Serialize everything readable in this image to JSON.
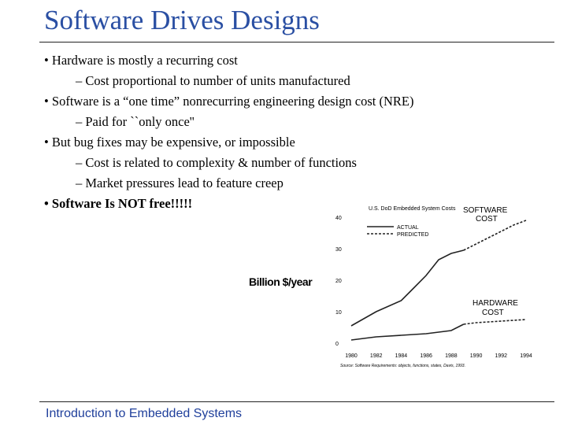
{
  "slide": {
    "title": "Software Drives Designs",
    "footer": "Introduction to Embedded Systems",
    "bullets": [
      {
        "level": 1,
        "text": "• Hardware is mostly a recurring cost"
      },
      {
        "level": 2,
        "text": "– Cost proportional to number of units manufactured"
      },
      {
        "level": 1,
        "text": "• Software is a “one time” nonrecurring engineering design cost (NRE)"
      },
      {
        "level": 2,
        "text": "– Paid for ``only once''"
      },
      {
        "level": 1,
        "text": "• But bug fixes may be expensive, or impossible"
      },
      {
        "level": 2,
        "text": "– Cost is related to complexity & number of functions"
      },
      {
        "level": 2,
        "text": "– Market pressures lead to feature creep"
      },
      {
        "level": 1,
        "text": "• Software Is NOT free!!!!!",
        "bold": true
      }
    ]
  },
  "chart_data": {
    "type": "line",
    "title": "U.S. DoD Embedded System Costs",
    "ylabel": "Billion $/year",
    "xlabel": "",
    "x": [
      1980,
      1982,
      1984,
      1986,
      1988,
      1990,
      1992,
      1994
    ],
    "xlim": [
      1980,
      1994
    ],
    "ylim": [
      0,
      40
    ],
    "yticks": [
      0,
      10,
      20,
      30,
      40
    ],
    "legend": {
      "position": "top-left",
      "entries": [
        "ACTUAL",
        "PREDICTED"
      ]
    },
    "series": [
      {
        "name": "SOFTWARE COST",
        "style": "solid",
        "x": [
          1980,
          1982,
          1984,
          1985,
          1986,
          1987,
          1988,
          1989
        ],
        "values": [
          5.5,
          10,
          13.5,
          17.5,
          21.5,
          26.5,
          28.5,
          29.5
        ]
      },
      {
        "name": "SOFTWARE COST",
        "style": "dashed",
        "x": [
          1989,
          1990,
          1991,
          1992,
          1993,
          1994
        ],
        "values": [
          29.5,
          31.5,
          33.5,
          35.5,
          37.5,
          39
        ]
      },
      {
        "name": "HARDWARE COST",
        "style": "solid",
        "x": [
          1980,
          1982,
          1984,
          1986,
          1988,
          1989
        ],
        "values": [
          1,
          2,
          2.5,
          3,
          4,
          6
        ]
      },
      {
        "name": "HARDWARE COST",
        "style": "dashed",
        "x": [
          1989,
          1990,
          1992,
          1994
        ],
        "values": [
          6,
          6.5,
          7,
          7.5
        ]
      }
    ],
    "labels": {
      "software": [
        "SOFTWARE",
        "COST"
      ],
      "hardware": [
        "HARDWARE",
        "COST"
      ]
    },
    "source": "Source: Software Requirements: objects, functions, states, Davis, 1993."
  }
}
